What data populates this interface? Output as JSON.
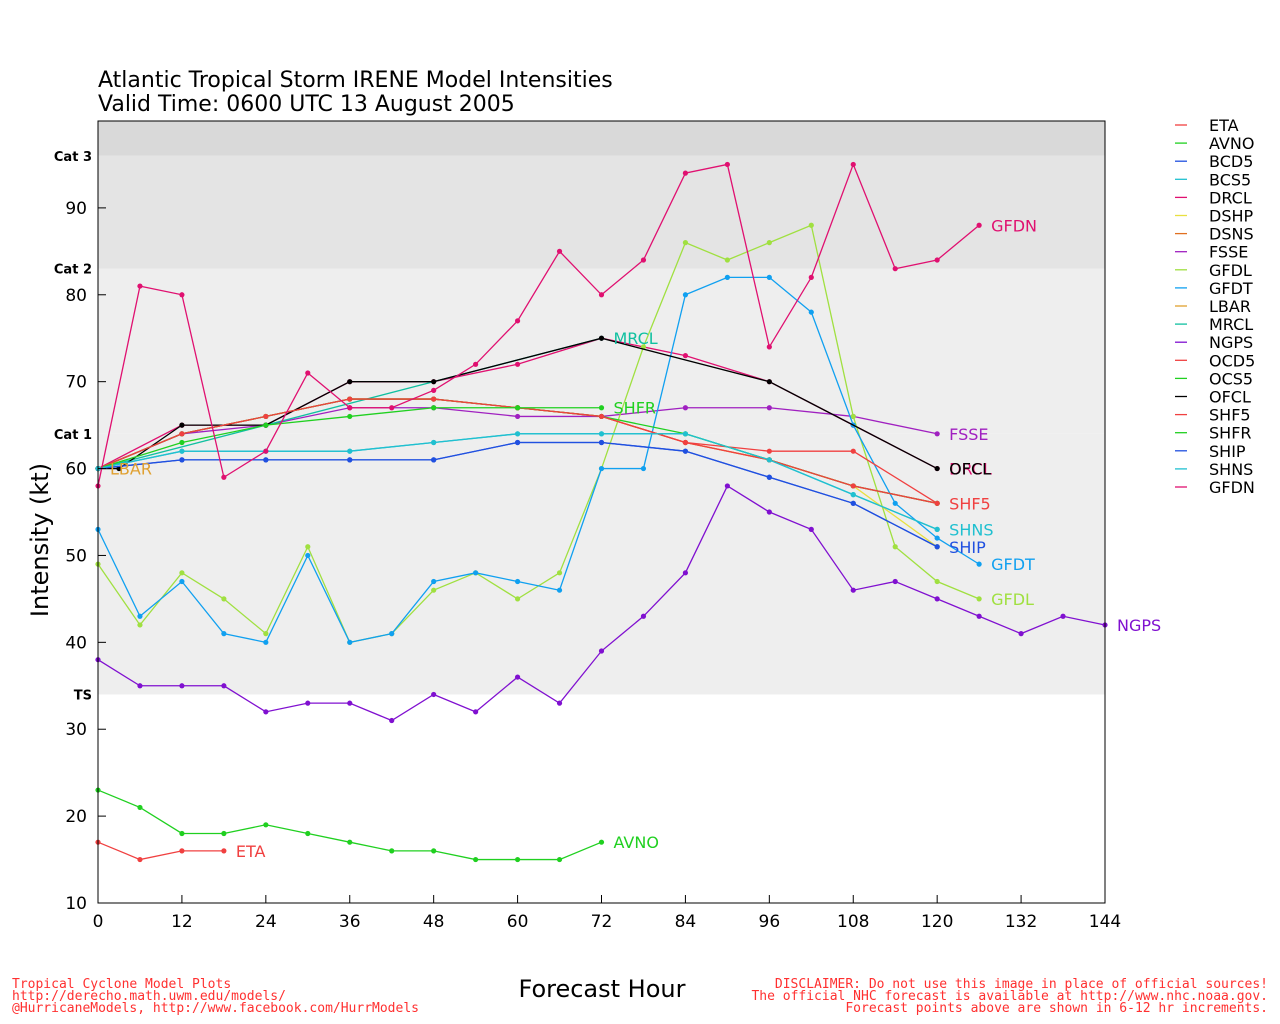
{
  "chart_data": {
    "type": "line",
    "title": "Atlantic Tropical Storm IRENE Model Intensities",
    "subtitle": "Valid Time: 0600 UTC 13 August 2005",
    "xlabel": "Forecast Hour",
    "ylabel": "Intensity (kt)",
    "xlim": [
      0,
      144
    ],
    "ylim": [
      10,
      100
    ],
    "xticks": [
      0,
      12,
      24,
      36,
      48,
      60,
      72,
      84,
      96,
      108,
      120,
      132,
      144
    ],
    "yticks": [
      10,
      20,
      30,
      40,
      50,
      60,
      70,
      80,
      90
    ],
    "grid": false,
    "legend_position": "right",
    "bands": [
      {
        "label": "TS",
        "from": 34,
        "to": 64,
        "color": "#eeeeee"
      },
      {
        "label": "Cat 1",
        "from": 64,
        "to": 83,
        "color": "#eeeeee"
      },
      {
        "label": "Cat 2",
        "from": 83,
        "to": 96,
        "color": "#e4e4e4"
      },
      {
        "label": "Cat 3",
        "from": 96,
        "to": 100,
        "color": "#d9d9d9"
      }
    ],
    "series": [
      {
        "name": "ETA",
        "color": "#f04040",
        "end_label": "ETA",
        "points": [
          [
            0,
            17
          ],
          [
            6,
            15
          ],
          [
            12,
            16
          ],
          [
            18,
            16
          ]
        ]
      },
      {
        "name": "AVNO",
        "color": "#20d020",
        "end_label": "AVNO",
        "points": [
          [
            0,
            23
          ],
          [
            6,
            21
          ],
          [
            12,
            18
          ],
          [
            18,
            18
          ],
          [
            24,
            19
          ],
          [
            30,
            18
          ],
          [
            36,
            17
          ],
          [
            42,
            16
          ],
          [
            48,
            16
          ],
          [
            54,
            15
          ],
          [
            60,
            15
          ],
          [
            66,
            15
          ],
          [
            72,
            17
          ]
        ]
      },
      {
        "name": "BCD5",
        "color": "#2050e0",
        "end_label": "",
        "points": [
          [
            0,
            60
          ],
          [
            12,
            61
          ],
          [
            24,
            61
          ],
          [
            36,
            61
          ],
          [
            48,
            61
          ],
          [
            60,
            63
          ],
          [
            72,
            63
          ],
          [
            84,
            62
          ],
          [
            96,
            59
          ],
          [
            108,
            56
          ],
          [
            120,
            51
          ]
        ]
      },
      {
        "name": "BCS5",
        "color": "#20c0d0",
        "end_label": "",
        "points": [
          [
            0,
            60
          ],
          [
            12,
            62
          ],
          [
            24,
            62
          ],
          [
            36,
            62
          ],
          [
            48,
            63
          ],
          [
            60,
            64
          ],
          [
            72,
            64
          ],
          [
            84,
            64
          ],
          [
            96,
            61
          ],
          [
            108,
            57
          ],
          [
            120,
            53
          ]
        ]
      },
      {
        "name": "DRCL",
        "color": "#e01070",
        "end_label": "DRCL",
        "points": [
          [
            0,
            60
          ],
          [
            12,
            65
          ],
          [
            24,
            65
          ],
          [
            36,
            70
          ],
          [
            48,
            70
          ],
          [
            60,
            72
          ],
          [
            72,
            75
          ],
          [
            84,
            73
          ],
          [
            96,
            70
          ],
          [
            108,
            65
          ],
          [
            120,
            60
          ]
        ]
      },
      {
        "name": "DSHP",
        "color": "#e8e040",
        "end_label": "",
        "points": [
          [
            0,
            60
          ],
          [
            12,
            64
          ],
          [
            24,
            66
          ],
          [
            36,
            68
          ],
          [
            48,
            68
          ],
          [
            60,
            67
          ],
          [
            72,
            66
          ],
          [
            84,
            63
          ],
          [
            96,
            61
          ],
          [
            108,
            58
          ],
          [
            120,
            51
          ]
        ]
      },
      {
        "name": "DSNS",
        "color": "#e07020",
        "end_label": "",
        "points": [
          [
            0,
            60
          ],
          [
            12,
            64
          ],
          [
            24,
            66
          ],
          [
            36,
            68
          ],
          [
            48,
            68
          ],
          [
            60,
            67
          ],
          [
            72,
            66
          ],
          [
            84,
            63
          ],
          [
            96,
            61
          ],
          [
            108,
            58
          ],
          [
            120,
            56
          ]
        ]
      },
      {
        "name": "FSSE",
        "color": "#a020c0",
        "end_label": "FSSE",
        "points": [
          [
            0,
            60
          ],
          [
            12,
            64
          ],
          [
            24,
            65
          ],
          [
            36,
            67
          ],
          [
            48,
            67
          ],
          [
            60,
            66
          ],
          [
            72,
            66
          ],
          [
            84,
            67
          ],
          [
            96,
            67
          ],
          [
            108,
            66
          ],
          [
            120,
            64
          ]
        ]
      },
      {
        "name": "GFDL",
        "color": "#a0e040",
        "end_label": "GFDL",
        "points": [
          [
            0,
            49
          ],
          [
            6,
            42
          ],
          [
            12,
            48
          ],
          [
            18,
            45
          ],
          [
            24,
            41
          ],
          [
            30,
            51
          ],
          [
            36,
            40
          ],
          [
            42,
            41
          ],
          [
            48,
            46
          ],
          [
            54,
            48
          ],
          [
            60,
            45
          ],
          [
            66,
            48
          ],
          [
            72,
            60
          ],
          [
            78,
            74
          ],
          [
            84,
            86
          ],
          [
            90,
            84
          ],
          [
            96,
            86
          ],
          [
            102,
            88
          ],
          [
            108,
            66
          ],
          [
            114,
            51
          ],
          [
            120,
            47
          ],
          [
            126,
            45
          ]
        ]
      },
      {
        "name": "GFDT",
        "color": "#10a0f0",
        "end_label": "GFDT",
        "points": [
          [
            0,
            53
          ],
          [
            6,
            43
          ],
          [
            12,
            47
          ],
          [
            18,
            41
          ],
          [
            24,
            40
          ],
          [
            30,
            50
          ],
          [
            36,
            40
          ],
          [
            42,
            41
          ],
          [
            48,
            47
          ],
          [
            54,
            48
          ],
          [
            60,
            47
          ],
          [
            66,
            46
          ],
          [
            72,
            60
          ],
          [
            78,
            60
          ],
          [
            84,
            80
          ],
          [
            90,
            82
          ],
          [
            96,
            82
          ],
          [
            102,
            78
          ],
          [
            108,
            65
          ],
          [
            114,
            56
          ],
          [
            120,
            52
          ],
          [
            126,
            49
          ]
        ]
      },
      {
        "name": "LBAR",
        "color": "#e0a030",
        "end_label": "LBAR",
        "points": [
          [
            0,
            60
          ]
        ]
      },
      {
        "name": "MRCL",
        "color": "#10c0a0",
        "end_label": "MRCL",
        "points": [
          [
            0,
            60
          ],
          [
            72,
            75
          ]
        ]
      },
      {
        "name": "NGPS",
        "color": "#8010d0",
        "end_label": "NGPS",
        "points": [
          [
            0,
            38
          ],
          [
            6,
            35
          ],
          [
            12,
            35
          ],
          [
            18,
            35
          ],
          [
            24,
            32
          ],
          [
            30,
            33
          ],
          [
            36,
            33
          ],
          [
            42,
            31
          ],
          [
            48,
            34
          ],
          [
            54,
            32
          ],
          [
            60,
            36
          ],
          [
            66,
            33
          ],
          [
            72,
            39
          ],
          [
            78,
            43
          ],
          [
            84,
            48
          ],
          [
            90,
            58
          ],
          [
            96,
            55
          ],
          [
            102,
            53
          ],
          [
            108,
            46
          ],
          [
            114,
            47
          ],
          [
            120,
            45
          ],
          [
            126,
            43
          ],
          [
            132,
            41
          ],
          [
            138,
            43
          ],
          [
            144,
            42
          ]
        ]
      },
      {
        "name": "OCD5",
        "color": "#f04040",
        "end_label": "",
        "points": [
          [
            0,
            60
          ],
          [
            12,
            64
          ],
          [
            24,
            66
          ],
          [
            36,
            68
          ],
          [
            48,
            68
          ],
          [
            60,
            67
          ],
          [
            72,
            66
          ],
          [
            84,
            63
          ],
          [
            96,
            62
          ],
          [
            108,
            62
          ],
          [
            120,
            56
          ]
        ]
      },
      {
        "name": "OCS5",
        "color": "#20d020",
        "end_label": "",
        "points": [
          [
            0,
            60
          ],
          [
            12,
            64
          ],
          [
            24,
            66
          ],
          [
            36,
            68
          ],
          [
            48,
            68
          ],
          [
            60,
            67
          ],
          [
            72,
            66
          ],
          [
            84,
            64
          ],
          [
            96,
            61
          ],
          [
            108,
            58
          ],
          [
            120,
            56
          ]
        ]
      },
      {
        "name": "OFCL",
        "color": "#000000",
        "end_label": "OFCL",
        "points": [
          [
            0,
            60
          ],
          [
            3,
            60
          ],
          [
            12,
            65
          ],
          [
            24,
            65
          ],
          [
            36,
            70
          ],
          [
            48,
            70
          ],
          [
            72,
            75
          ],
          [
            96,
            70
          ],
          [
            120,
            60
          ]
        ]
      },
      {
        "name": "SHF5",
        "color": "#f04040",
        "end_label": "SHF5",
        "points": [
          [
            0,
            60
          ],
          [
            12,
            64
          ],
          [
            24,
            66
          ],
          [
            36,
            68
          ],
          [
            48,
            68
          ],
          [
            60,
            67
          ],
          [
            72,
            66
          ],
          [
            84,
            63
          ],
          [
            96,
            61
          ],
          [
            108,
            58
          ],
          [
            120,
            56
          ]
        ]
      },
      {
        "name": "SHFR",
        "color": "#20d020",
        "end_label": "SHFR",
        "points": [
          [
            0,
            60
          ],
          [
            12,
            63
          ],
          [
            24,
            65
          ],
          [
            36,
            66
          ],
          [
            48,
            67
          ],
          [
            60,
            67
          ],
          [
            72,
            67
          ]
        ]
      },
      {
        "name": "SHIP",
        "color": "#2050e0",
        "end_label": "SHIP",
        "points": [
          [
            0,
            60
          ],
          [
            12,
            61
          ],
          [
            24,
            61
          ],
          [
            36,
            61
          ],
          [
            48,
            61
          ],
          [
            60,
            63
          ],
          [
            72,
            63
          ],
          [
            84,
            62
          ],
          [
            96,
            59
          ],
          [
            108,
            56
          ],
          [
            120,
            51
          ]
        ]
      },
      {
        "name": "SHNS",
        "color": "#20c0d0",
        "end_label": "SHNS",
        "points": [
          [
            0,
            60
          ],
          [
            12,
            62
          ],
          [
            24,
            62
          ],
          [
            36,
            62
          ],
          [
            48,
            63
          ],
          [
            60,
            64
          ],
          [
            72,
            64
          ],
          [
            84,
            64
          ],
          [
            96,
            61
          ],
          [
            108,
            57
          ],
          [
            120,
            53
          ]
        ]
      },
      {
        "name": "GFDN",
        "color": "#e01070",
        "end_label": "GFDN",
        "points": [
          [
            0,
            58
          ],
          [
            6,
            81
          ],
          [
            12,
            80
          ],
          [
            18,
            59
          ],
          [
            24,
            62
          ],
          [
            30,
            71
          ],
          [
            36,
            67
          ],
          [
            42,
            67
          ],
          [
            48,
            69
          ],
          [
            54,
            72
          ],
          [
            60,
            77
          ],
          [
            66,
            85
          ],
          [
            72,
            80
          ],
          [
            78,
            84
          ],
          [
            84,
            94
          ],
          [
            90,
            95
          ],
          [
            96,
            74
          ],
          [
            102,
            82
          ],
          [
            108,
            95
          ],
          [
            114,
            83
          ],
          [
            120,
            84
          ],
          [
            126,
            88
          ]
        ]
      }
    ]
  },
  "footer": {
    "left_line1": "Tropical Cyclone Model Plots",
    "left_line2": "http://derecho.math.uwm.edu/models/",
    "left_line3": "@HurricaneModels, http://www.facebook.com/HurrModels",
    "right_line1": "DISCLAIMER: Do not use this image in place of official sources!",
    "right_line2": "The official NHC forecast is available at http://www.nhc.noaa.gov.",
    "right_line3": "Forecast points above are shown in 6-12 hr increments."
  }
}
